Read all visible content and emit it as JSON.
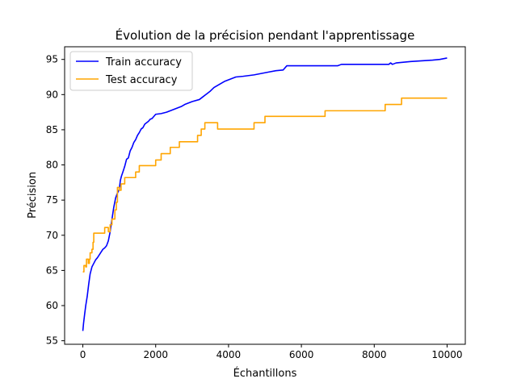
{
  "chart_data": {
    "type": "line",
    "title": "Évolution de la précision pendant l'apprentissage",
    "xlabel": "Échantillons",
    "ylabel": "Précision",
    "xlim": [
      -500,
      10500
    ],
    "ylim": [
      54.5,
      96.8
    ],
    "xticks": [
      0,
      2000,
      4000,
      6000,
      8000,
      10000
    ],
    "yticks": [
      55,
      60,
      65,
      70,
      75,
      80,
      85,
      90,
      95
    ],
    "grid": false,
    "legend_position": "top-left",
    "series": [
      {
        "name": "Train accuracy",
        "color": "#0000ff",
        "step": false,
        "points": [
          [
            0,
            56.4
          ],
          [
            20,
            57.5
          ],
          [
            50,
            58.8
          ],
          [
            80,
            60.0
          ],
          [
            120,
            61.3
          ],
          [
            160,
            63.0
          ],
          [
            200,
            64.5
          ],
          [
            250,
            65.5
          ],
          [
            300,
            66.0
          ],
          [
            350,
            66.5
          ],
          [
            400,
            66.8
          ],
          [
            450,
            67.2
          ],
          [
            500,
            67.6
          ],
          [
            550,
            68.0
          ],
          [
            600,
            68.2
          ],
          [
            650,
            68.5
          ],
          [
            700,
            69.2
          ],
          [
            750,
            70.5
          ],
          [
            800,
            72.3
          ],
          [
            850,
            74.0
          ],
          [
            900,
            75.3
          ],
          [
            950,
            76.0
          ],
          [
            1000,
            76.5
          ],
          [
            1030,
            77.8
          ],
          [
            1060,
            78.4
          ],
          [
            1100,
            79.0
          ],
          [
            1150,
            79.8
          ],
          [
            1200,
            80.8
          ],
          [
            1250,
            81.0
          ],
          [
            1300,
            82.0
          ],
          [
            1350,
            82.5
          ],
          [
            1400,
            83.2
          ],
          [
            1450,
            83.6
          ],
          [
            1500,
            84.2
          ],
          [
            1550,
            84.6
          ],
          [
            1600,
            85.1
          ],
          [
            1650,
            85.3
          ],
          [
            1700,
            85.8
          ],
          [
            1750,
            86.0
          ],
          [
            1800,
            86.2
          ],
          [
            1850,
            86.5
          ],
          [
            1900,
            86.6
          ],
          [
            1950,
            86.9
          ],
          [
            2000,
            87.2
          ],
          [
            2150,
            87.3
          ],
          [
            2300,
            87.5
          ],
          [
            2500,
            87.9
          ],
          [
            2700,
            88.3
          ],
          [
            2800,
            88.6
          ],
          [
            2900,
            88.8
          ],
          [
            3000,
            89.0
          ],
          [
            3200,
            89.3
          ],
          [
            3300,
            89.7
          ],
          [
            3400,
            90.1
          ],
          [
            3500,
            90.5
          ],
          [
            3600,
            91.0
          ],
          [
            3700,
            91.3
          ],
          [
            3800,
            91.6
          ],
          [
            3900,
            91.9
          ],
          [
            4000,
            92.1
          ],
          [
            4100,
            92.3
          ],
          [
            4200,
            92.5
          ],
          [
            4400,
            92.6
          ],
          [
            4700,
            92.8
          ],
          [
            4900,
            93.0
          ],
          [
            5100,
            93.2
          ],
          [
            5300,
            93.4
          ],
          [
            5500,
            93.5
          ],
          [
            5600,
            94.1
          ],
          [
            6000,
            94.1
          ],
          [
            6500,
            94.1
          ],
          [
            7000,
            94.1
          ],
          [
            7100,
            94.3
          ],
          [
            7500,
            94.3
          ],
          [
            8000,
            94.3
          ],
          [
            8400,
            94.3
          ],
          [
            8450,
            94.5
          ],
          [
            8500,
            94.3
          ],
          [
            8600,
            94.5
          ],
          [
            9000,
            94.7
          ],
          [
            9300,
            94.8
          ],
          [
            9600,
            94.9
          ],
          [
            9800,
            95.0
          ],
          [
            9900,
            95.1
          ],
          [
            10000,
            95.2
          ]
        ]
      },
      {
        "name": "Test accuracy",
        "color": "#ffa500",
        "step": true,
        "points": [
          [
            0,
            64.8
          ],
          [
            30,
            65.7
          ],
          [
            80,
            65.5
          ],
          [
            100,
            66.6
          ],
          [
            150,
            66.0
          ],
          [
            180,
            66.6
          ],
          [
            200,
            67.5
          ],
          [
            250,
            68.0
          ],
          [
            280,
            69.0
          ],
          [
            300,
            70.3
          ],
          [
            500,
            70.3
          ],
          [
            600,
            71.1
          ],
          [
            700,
            70.5
          ],
          [
            750,
            71.5
          ],
          [
            800,
            72.3
          ],
          [
            880,
            73.6
          ],
          [
            920,
            74.7
          ],
          [
            950,
            76.8
          ],
          [
            1000,
            76.4
          ],
          [
            1050,
            77.3
          ],
          [
            1100,
            77.3
          ],
          [
            1150,
            78.2
          ],
          [
            1450,
            79.0
          ],
          [
            1550,
            79.9
          ],
          [
            2000,
            80.7
          ],
          [
            2150,
            81.6
          ],
          [
            2400,
            82.5
          ],
          [
            2650,
            83.3
          ],
          [
            3150,
            84.2
          ],
          [
            3250,
            85.1
          ],
          [
            3350,
            86.0
          ],
          [
            3700,
            85.1
          ],
          [
            4700,
            86.0
          ],
          [
            5000,
            86.9
          ],
          [
            6650,
            87.7
          ],
          [
            8300,
            88.6
          ],
          [
            8750,
            89.5
          ],
          [
            10000,
            89.5
          ]
        ]
      }
    ]
  }
}
